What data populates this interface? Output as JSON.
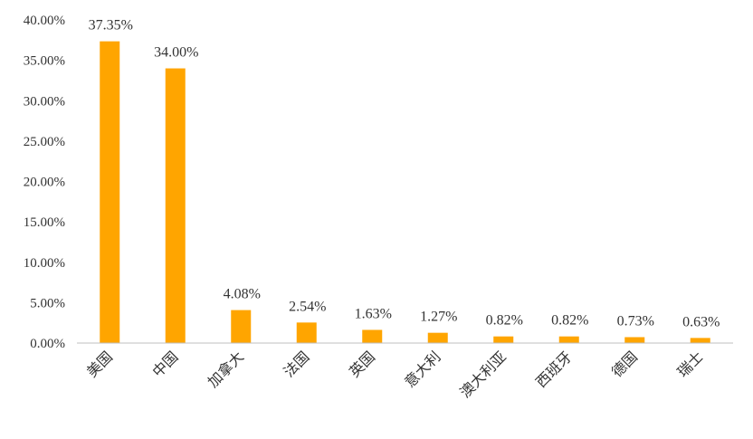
{
  "chart_data": {
    "type": "bar",
    "title": "",
    "xlabel": "",
    "ylabel": "",
    "categories": [
      "美国",
      "中国",
      "加拿大",
      "法国",
      "英国",
      "意大利",
      "澳大利亚",
      "西班牙",
      "德国",
      "瑞士"
    ],
    "values": [
      37.35,
      34.0,
      4.08,
      2.54,
      1.63,
      1.27,
      0.82,
      0.82,
      0.73,
      0.63
    ],
    "value_labels": [
      "37.35%",
      "34.00%",
      "4.08%",
      "2.54%",
      "1.63%",
      "1.27%",
      "0.82%",
      "0.82%",
      "0.73%",
      "0.63%"
    ],
    "ylim": [
      0,
      40
    ],
    "yticks": [
      0,
      5,
      10,
      15,
      20,
      25,
      30,
      35,
      40
    ],
    "ytick_labels": [
      "0.00%",
      "5.00%",
      "10.00%",
      "15.00%",
      "20.00%",
      "25.00%",
      "30.00%",
      "35.00%",
      "40.00%"
    ],
    "grid": false,
    "legend": "none",
    "bar_color": "#FFA500",
    "axis_color": "#BFBFBF"
  }
}
